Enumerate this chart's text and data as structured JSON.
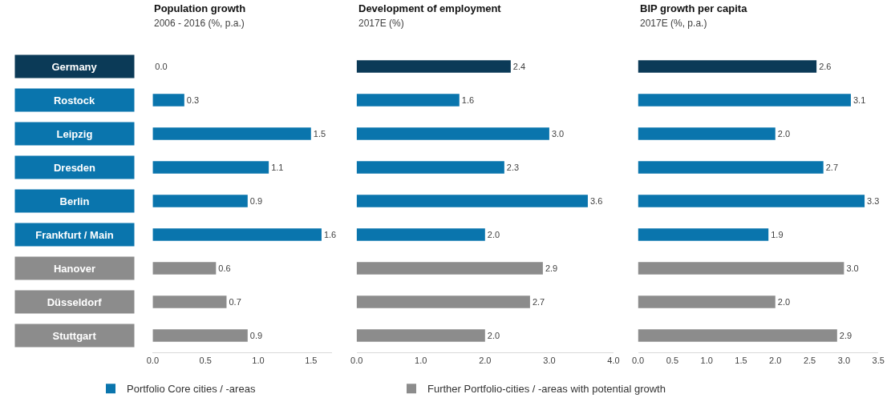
{
  "chart_data": [
    {
      "type": "bar",
      "orientation": "horizontal",
      "title": "Population growth",
      "subtitle": "2006 - 2016 (%, p.a.)",
      "legend": "bottom",
      "categories": [
        "Germany",
        "Rostock",
        "Leipzig",
        "Dresden",
        "Berlin",
        "Frankfurt / Main",
        "Hanover",
        "Düsseldorf",
        "Stuttgart"
      ],
      "series": [
        {
          "color": "#0b3a57",
          "values": [
            0.0,
            null,
            null,
            null,
            null,
            null,
            null,
            null,
            null
          ],
          "value_labels": [
            "0.0",
            null,
            null,
            null,
            null,
            null,
            null,
            null,
            null
          ]
        },
        {
          "name": "Portfolio Core cities / -areas",
          "color": "#0a75ad",
          "values": [
            null,
            0.3,
            1.5,
            1.1,
            0.9,
            1.6,
            null,
            null,
            null
          ],
          "value_labels": [
            null,
            "0.3",
            "1.5",
            "1.1",
            "0.9",
            "1.6",
            null,
            null,
            null
          ]
        },
        {
          "name": "Further Portfolio-cities / -areas with potential growth",
          "color": "#8c8c8c",
          "values": [
            null,
            null,
            null,
            null,
            null,
            null,
            0.6,
            0.7,
            0.9
          ],
          "value_labels": [
            null,
            null,
            null,
            null,
            null,
            null,
            "0.6",
            "0.7",
            "0.9"
          ]
        }
      ],
      "xlim": [
        0,
        1.7
      ],
      "xticks": [
        {
          "value": 0,
          "label": "0.0"
        },
        0.5,
        {
          "value": 1,
          "label": "1.0"
        },
        1.5
      ]
    },
    {
      "type": "bar",
      "orientation": "horizontal",
      "title": "Development of employment",
      "subtitle": "2017E (%)",
      "tick_labels": "x",
      "series": [
        {
          "color": "#0b3a57",
          "values": [
            2.4,
            null,
            null,
            null,
            null,
            null,
            null,
            null,
            null
          ],
          "value_labels": [
            "2.4",
            null,
            null,
            null,
            null,
            null,
            null,
            null,
            null
          ]
        },
        {
          "color": "#0a75ad",
          "values": [
            null,
            1.6,
            3.0,
            2.3,
            3.6,
            2.0,
            null,
            null,
            null
          ],
          "value_labels": [
            null,
            "1.6",
            "3.0",
            "2.3",
            "3.6",
            "2.0",
            null,
            null,
            null
          ]
        },
        {
          "color": "#8c8c8c",
          "values": [
            null,
            null,
            null,
            null,
            null,
            null,
            2.9,
            2.7,
            2.0
          ],
          "value_labels": [
            null,
            null,
            null,
            null,
            null,
            null,
            "2.9",
            "2.7",
            "2.0"
          ]
        }
      ],
      "xlim": [
        0,
        4
      ],
      "xticks": [
        {
          "value": 0,
          "label": "0.0"
        },
        {
          "value": 1,
          "label": "1.0"
        },
        {
          "value": 2,
          "label": "2.0"
        },
        {
          "value": 3,
          "label": "3.0"
        },
        {
          "value": 4,
          "label": "4.0"
        }
      ]
    },
    {
      "type": "bar",
      "orientation": "horizontal",
      "title": "BIP growth per capita",
      "subtitle": "2017E (%, p.a.)",
      "tick_labels": "x",
      "series": [
        {
          "color": "#0b3a57",
          "values": [
            2.6,
            null,
            null,
            null,
            null,
            null,
            null,
            null,
            null
          ],
          "value_labels": [
            "2.6",
            null,
            null,
            null,
            null,
            null,
            null,
            null,
            null
          ]
        },
        {
          "color": "#0a75ad",
          "values": [
            null,
            3.1,
            2.0,
            2.7,
            3.3,
            1.9,
            null,
            null,
            null
          ],
          "value_labels": [
            null,
            "3.1",
            "2.0",
            "2.7",
            "3.3",
            "1.9",
            null,
            null,
            null
          ]
        },
        {
          "color": "#8c8c8c",
          "values": [
            null,
            null,
            null,
            null,
            null,
            null,
            3.0,
            2.0,
            2.9
          ],
          "value_labels": [
            null,
            null,
            null,
            null,
            null,
            null,
            "3.0",
            "2.0",
            "2.9"
          ]
        }
      ],
      "xlim": [
        0,
        3.5
      ],
      "xticks": [
        {
          "value": 0,
          "label": "0.0"
        },
        0.5,
        {
          "value": 1,
          "label": "1.0"
        },
        1.5,
        {
          "value": 2,
          "label": "2.0"
        },
        2.5,
        {
          "value": 3,
          "label": "3.0"
        },
        3.5
      ]
    }
  ]
}
